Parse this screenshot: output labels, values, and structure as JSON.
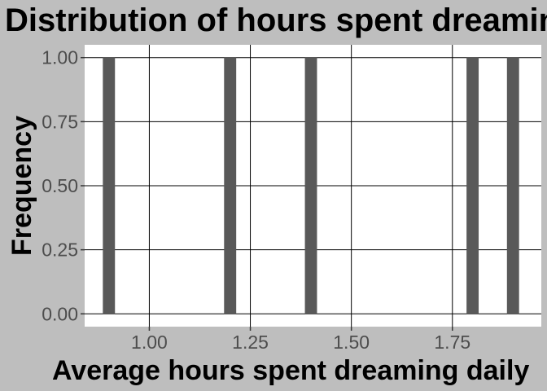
{
  "chart_data": {
    "type": "bar",
    "title": "Distribution of hours spent dreaming",
    "xlabel": "Average hours spent dreaming daily",
    "ylabel": "Frequency",
    "x": [
      0.9,
      1.2,
      1.4,
      1.8,
      1.9
    ],
    "values": [
      1,
      1,
      1,
      1,
      1
    ],
    "bin_width": 0.03,
    "xlim": [
      0.84,
      1.97
    ],
    "ylim": [
      -0.05,
      1.05
    ],
    "x_ticks": [
      1.0,
      1.25,
      1.5,
      1.75
    ],
    "x_tick_labels": [
      "1.00",
      "1.25",
      "1.50",
      "1.75"
    ],
    "y_ticks": [
      0,
      0.25,
      0.5,
      0.75,
      1.0
    ],
    "y_tick_labels": [
      "0.00",
      "0.25",
      "0.50",
      "0.75",
      "1.00"
    ],
    "grid": true,
    "colors": {
      "bar": "#595959",
      "panel": "#ffffff",
      "background": "#bebebe",
      "grid": "#000000"
    }
  }
}
